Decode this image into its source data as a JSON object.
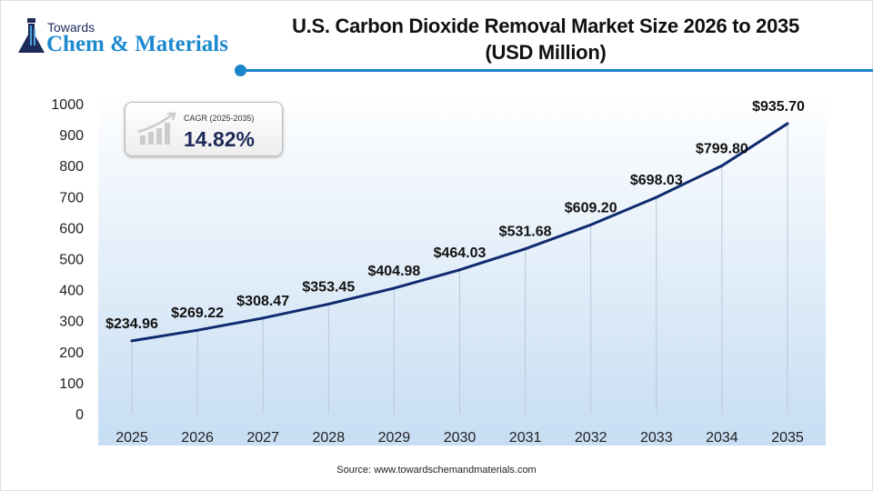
{
  "logo": {
    "line1": "Towards",
    "line2": "Chem & Materials"
  },
  "title_line1": "U.S. Carbon Dioxide Removal Market Size 2026 to 2035",
  "title_line2": "(USD Million)",
  "cagr": {
    "label": "CAGR (2025-2035)",
    "value": "14.82%"
  },
  "source": "Source: www.towardschemandmaterials.com",
  "colors": {
    "line": "#0f2a6e",
    "accent": "#1a85c8",
    "area": "#cfe3f5"
  },
  "chart_data": {
    "type": "line",
    "title": "U.S. Carbon Dioxide Removal Market Size 2026 to 2035 (USD Million)",
    "categories": [
      "2025",
      "2026",
      "2027",
      "2028",
      "2029",
      "2030",
      "2031",
      "2032",
      "2033",
      "2034",
      "2035"
    ],
    "values": [
      234.96,
      269.22,
      308.47,
      353.45,
      404.98,
      464.03,
      531.68,
      609.2,
      698.03,
      799.8,
      935.7
    ],
    "data_labels": [
      "$234.96",
      "$269.22",
      "$308.47",
      "$353.45",
      "$404.98",
      "$464.03",
      "$531.68",
      "$609.20",
      "$698.03",
      "$799.80",
      "$935.70"
    ],
    "ylim": [
      0,
      1000
    ],
    "yticks": [
      "0",
      "100",
      "200",
      "300",
      "400",
      "500",
      "600",
      "700",
      "800",
      "900",
      "1000"
    ],
    "grid": "vertical",
    "legend": "none"
  }
}
